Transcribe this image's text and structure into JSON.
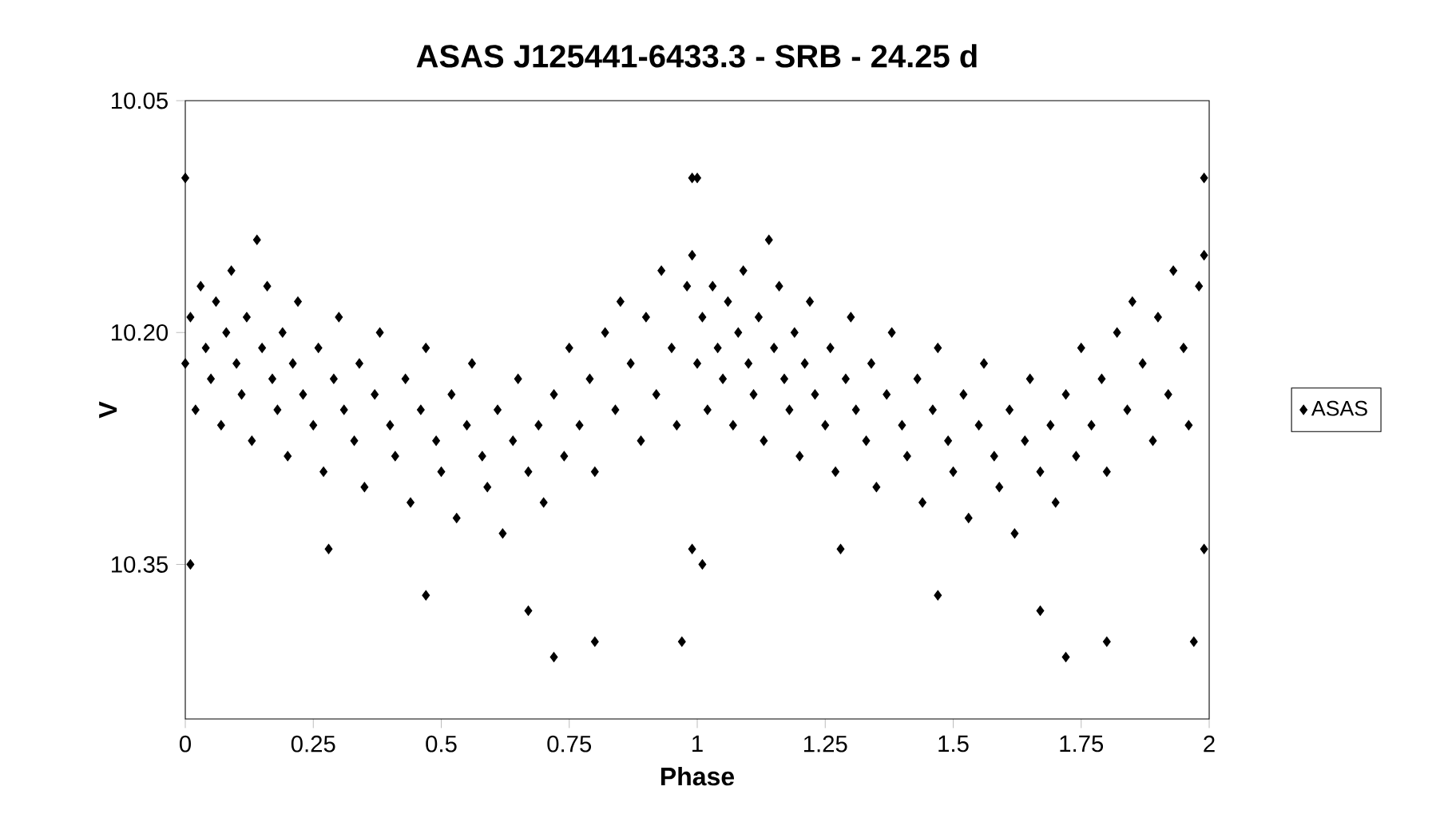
{
  "chart_data": {
    "type": "scatter",
    "title": "ASAS J125441-6433.3 - SRB - 24.25 d",
    "xlabel": "Phase",
    "ylabel": "V",
    "xlim": [
      0,
      2
    ],
    "xticks": [
      0,
      0.25,
      0.5,
      0.75,
      1,
      1.25,
      1.5,
      1.75,
      2
    ],
    "ylim": [
      10.45,
      10.05
    ],
    "yticks": [
      10.05,
      {
        "value": 10.2,
        "label": "10.20"
      },
      10.35
    ],
    "marker": "diamond",
    "legend": "right",
    "grid": false,
    "series": [
      {
        "name": "ASAS",
        "color": "#000000",
        "x": [
          0.0,
          0.0,
          0.01,
          0.01,
          0.02,
          0.03,
          0.04,
          0.05,
          0.06,
          0.07,
          0.08,
          0.09,
          0.1,
          0.11,
          0.12,
          0.13,
          0.14,
          0.15,
          0.16,
          0.17,
          0.18,
          0.19,
          0.2,
          0.21,
          0.22,
          0.23,
          0.25,
          0.26,
          0.27,
          0.28,
          0.29,
          0.3,
          0.31,
          0.33,
          0.34,
          0.35,
          0.37,
          0.38,
          0.4,
          0.41,
          0.43,
          0.44,
          0.46,
          0.47,
          0.47,
          0.49,
          0.5,
          0.52,
          0.53,
          0.55,
          0.56,
          0.58,
          0.59,
          0.61,
          0.62,
          0.64,
          0.65,
          0.67,
          0.67,
          0.69,
          0.7,
          0.72,
          0.72,
          0.74,
          0.75,
          0.77,
          0.79,
          0.8,
          0.8,
          0.82,
          0.84,
          0.85,
          0.87,
          0.89,
          0.9,
          0.92,
          0.93,
          0.95,
          0.96,
          0.97,
          0.98,
          0.99,
          0.99,
          0.99,
          1.0,
          1.0,
          1.01,
          1.01,
          1.02,
          1.03,
          1.04,
          1.05,
          1.06,
          1.07,
          1.08,
          1.09,
          1.1,
          1.11,
          1.12,
          1.13,
          1.14,
          1.15,
          1.16,
          1.17,
          1.18,
          1.19,
          1.2,
          1.21,
          1.22,
          1.23,
          1.25,
          1.26,
          1.27,
          1.28,
          1.29,
          1.3,
          1.31,
          1.33,
          1.34,
          1.35,
          1.37,
          1.38,
          1.4,
          1.41,
          1.43,
          1.44,
          1.46,
          1.47,
          1.47,
          1.49,
          1.5,
          1.52,
          1.53,
          1.55,
          1.56,
          1.58,
          1.59,
          1.61,
          1.62,
          1.64,
          1.65,
          1.67,
          1.67,
          1.69,
          1.7,
          1.72,
          1.72,
          1.74,
          1.75,
          1.77,
          1.79,
          1.8,
          1.8,
          1.82,
          1.84,
          1.85,
          1.87,
          1.89,
          1.9,
          1.92,
          1.93,
          1.95,
          1.96,
          1.97,
          1.98,
          1.99,
          1.99,
          1.99
        ],
        "values": [
          10.1,
          10.22,
          10.19,
          10.35,
          10.25,
          10.17,
          10.21,
          10.23,
          10.18,
          10.26,
          10.2,
          10.16,
          10.22,
          10.24,
          10.19,
          10.27,
          10.14,
          10.21,
          10.17,
          10.23,
          10.25,
          10.2,
          10.28,
          10.22,
          10.18,
          10.24,
          10.26,
          10.21,
          10.29,
          10.34,
          10.23,
          10.19,
          10.25,
          10.27,
          10.22,
          10.3,
          10.24,
          10.2,
          10.26,
          10.28,
          10.23,
          10.31,
          10.25,
          10.21,
          10.37,
          10.27,
          10.29,
          10.24,
          10.32,
          10.26,
          10.22,
          10.28,
          10.3,
          10.25,
          10.33,
          10.27,
          10.23,
          10.29,
          10.38,
          10.26,
          10.31,
          10.24,
          10.41,
          10.28,
          10.21,
          10.26,
          10.23,
          10.29,
          10.4,
          10.2,
          10.25,
          10.18,
          10.22,
          10.27,
          10.19,
          10.24,
          10.16,
          10.21,
          10.26,
          10.4,
          10.17,
          10.15,
          10.1,
          10.34,
          10.1,
          10.22,
          10.19,
          10.35,
          10.25,
          10.17,
          10.21,
          10.23,
          10.18,
          10.26,
          10.2,
          10.16,
          10.22,
          10.24,
          10.19,
          10.27,
          10.14,
          10.21,
          10.17,
          10.23,
          10.25,
          10.2,
          10.28,
          10.22,
          10.18,
          10.24,
          10.26,
          10.21,
          10.29,
          10.34,
          10.23,
          10.19,
          10.25,
          10.27,
          10.22,
          10.3,
          10.24,
          10.2,
          10.26,
          10.28,
          10.23,
          10.31,
          10.25,
          10.21,
          10.37,
          10.27,
          10.29,
          10.24,
          10.32,
          10.26,
          10.22,
          10.28,
          10.3,
          10.25,
          10.33,
          10.27,
          10.23,
          10.29,
          10.38,
          10.26,
          10.31,
          10.24,
          10.41,
          10.28,
          10.21,
          10.26,
          10.23,
          10.29,
          10.4,
          10.2,
          10.25,
          10.18,
          10.22,
          10.27,
          10.19,
          10.24,
          10.16,
          10.21,
          10.26,
          10.4,
          10.17,
          10.15,
          10.1,
          10.34
        ]
      }
    ]
  }
}
